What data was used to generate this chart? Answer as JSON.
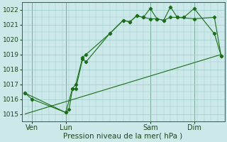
{
  "background_color": "#cce8e8",
  "grid_color": "#99cccc",
  "line_color": "#1a6e1a",
  "marker_color": "#1a6e1a",
  "xlabel": "Pression niveau de la mer( hPa )",
  "ylim": [
    1014.5,
    1022.5
  ],
  "yticks": [
    1015,
    1016,
    1017,
    1018,
    1019,
    1020,
    1021,
    1022
  ],
  "xlim": [
    0,
    60
  ],
  "xtick_positions": [
    3,
    13,
    38,
    51
  ],
  "xtick_labels": [
    "Ven",
    "Lun",
    "Sam",
    "Dim"
  ],
  "vline_positions": [
    3,
    13,
    38,
    51
  ],
  "series1_x": [
    1,
    3,
    13,
    14,
    15,
    16,
    18,
    19,
    26,
    30,
    32,
    34,
    36,
    38,
    40,
    42,
    44,
    46,
    48,
    51,
    57,
    59
  ],
  "series1_y": [
    1016.4,
    1016.0,
    1015.1,
    1015.3,
    1016.7,
    1017.0,
    1018.8,
    1019.0,
    1020.4,
    1021.3,
    1021.2,
    1021.6,
    1021.5,
    1022.1,
    1021.4,
    1021.3,
    1022.2,
    1021.5,
    1021.5,
    1022.1,
    1020.4,
    1018.9
  ],
  "series2_x": [
    1,
    13,
    15,
    16,
    18,
    19,
    26,
    30,
    32,
    34,
    36,
    38,
    40,
    42,
    44,
    46,
    51,
    57,
    59
  ],
  "series2_y": [
    1016.4,
    1015.1,
    1016.7,
    1016.7,
    1018.7,
    1018.5,
    1020.4,
    1021.3,
    1021.2,
    1021.6,
    1021.5,
    1021.4,
    1021.4,
    1021.3,
    1021.5,
    1021.5,
    1021.4,
    1021.5,
    1018.9
  ],
  "trend_x": [
    1,
    59
  ],
  "trend_y": [
    1015.0,
    1019.0
  ]
}
